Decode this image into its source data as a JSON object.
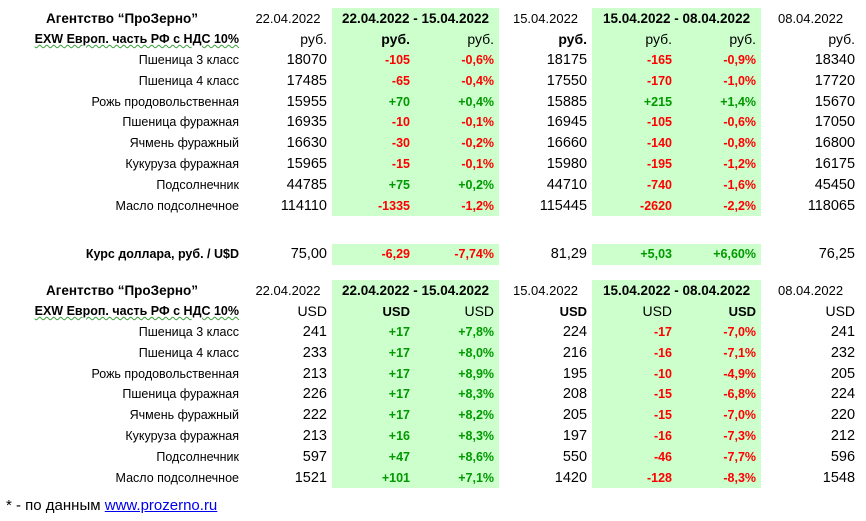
{
  "colors": {
    "highlight": "#ccffcc",
    "negative": "#ff0000",
    "positive": "#009900",
    "link": "#0000ee"
  },
  "rub_table": {
    "agency": "Агентство “ПроЗерно”",
    "date_a": "22.04.2022",
    "range_1": "22.04.2022 - 15.04.2022",
    "date_b": "15.04.2022",
    "range_2": "15.04.2022 - 08.04.2022",
    "date_c": "08.04.2022",
    "basis": "EXW Европ. часть РФ с НДС 10%",
    "units": [
      "руб.",
      "руб.",
      "руб.",
      "руб.",
      "руб.",
      "руб.",
      "руб."
    ],
    "rows": [
      {
        "name": "Пшеница 3 класс",
        "v1": "18070",
        "d1": "-105",
        "p1": "-0,6%",
        "v2": "18175",
        "d2": "-165",
        "p2": "-0,9%",
        "v3": "18340"
      },
      {
        "name": "Пшеница 4 класс",
        "v1": "17485",
        "d1": "-65",
        "p1": "-0,4%",
        "v2": "17550",
        "d2": "-170",
        "p2": "-1,0%",
        "v3": "17720"
      },
      {
        "name": "Рожь продовольственная",
        "v1": "15955",
        "d1": "+70",
        "p1": "+0,4%",
        "v2": "15885",
        "d2": "+215",
        "p2": "+1,4%",
        "v3": "15670"
      },
      {
        "name": "Пшеница фуражная",
        "v1": "16935",
        "d1": "-10",
        "p1": "-0,1%",
        "v2": "16945",
        "d2": "-105",
        "p2": "-0,6%",
        "v3": "17050"
      },
      {
        "name": "Ячмень фуражный",
        "v1": "16630",
        "d1": "-30",
        "p1": "-0,2%",
        "v2": "16660",
        "d2": "-140",
        "p2": "-0,8%",
        "v3": "16800"
      },
      {
        "name": "Кукуруза фуражная",
        "v1": "15965",
        "d1": "-15",
        "p1": "-0,1%",
        "v2": "15980",
        "d2": "-195",
        "p2": "-1,2%",
        "v3": "16175"
      },
      {
        "name": "Подсолнечник",
        "v1": "44785",
        "d1": "+75",
        "p1": "+0,2%",
        "v2": "44710",
        "d2": "-740",
        "p2": "-1,6%",
        "v3": "45450"
      },
      {
        "name": "Масло подсолнечное",
        "v1": "114110",
        "d1": "-1335",
        "p1": "-1,2%",
        "v2": "115445",
        "d2": "-2620",
        "p2": "-2,2%",
        "v3": "118065"
      }
    ]
  },
  "fx_row": {
    "name": "Курс доллара, руб. / U$D",
    "v1": "75,00",
    "d1": "-6,29",
    "p1": "-7,74%",
    "v2": "81,29",
    "d2": "+5,03",
    "p2": "+6,60%",
    "v3": "76,25"
  },
  "usd_table": {
    "agency": "Агентство “ПроЗерно”",
    "date_a": "22.04.2022",
    "range_1": "22.04.2022 - 15.04.2022",
    "date_b": "15.04.2022",
    "range_2": "15.04.2022 - 08.04.2022",
    "date_c": "08.04.2022",
    "basis": "EXW Европ. часть РФ с НДС 10%",
    "units": [
      "USD",
      "USD",
      "USD",
      "USD",
      "USD",
      "USD",
      "USD"
    ],
    "rows": [
      {
        "name": "Пшеница 3 класс",
        "v1": "241",
        "d1": "+17",
        "p1": "+7,8%",
        "v2": "224",
        "d2": "-17",
        "p2": "-7,0%",
        "v3": "241"
      },
      {
        "name": "Пшеница 4 класс",
        "v1": "233",
        "d1": "+17",
        "p1": "+8,0%",
        "v2": "216",
        "d2": "-16",
        "p2": "-7,1%",
        "v3": "232"
      },
      {
        "name": "Рожь продовольственная",
        "v1": "213",
        "d1": "+17",
        "p1": "+8,9%",
        "v2": "195",
        "d2": "-10",
        "p2": "-4,9%",
        "v3": "205"
      },
      {
        "name": "Пшеница фуражная",
        "v1": "226",
        "d1": "+17",
        "p1": "+8,3%",
        "v2": "208",
        "d2": "-15",
        "p2": "-6,8%",
        "v3": "224"
      },
      {
        "name": "Ячмень фуражный",
        "v1": "222",
        "d1": "+17",
        "p1": "+8,2%",
        "v2": "205",
        "d2": "-15",
        "p2": "-7,0%",
        "v3": "220"
      },
      {
        "name": "Кукуруза фуражная",
        "v1": "213",
        "d1": "+16",
        "p1": "+8,3%",
        "v2": "197",
        "d2": "-16",
        "p2": "-7,3%",
        "v3": "212"
      },
      {
        "name": "Подсолнечник",
        "v1": "597",
        "d1": "+47",
        "p1": "+8,6%",
        "v2": "550",
        "d2": "-46",
        "p2": "-7,7%",
        "v3": "596"
      },
      {
        "name": "Масло подсолнечное",
        "v1": "1521",
        "d1": "+101",
        "p1": "+7,1%",
        "v2": "1420",
        "d2": "-128",
        "p2": "-8,3%",
        "v3": "1548"
      }
    ]
  },
  "footnote": {
    "prefix": "* - по данным ",
    "link_text": "www.prozerno.ru"
  }
}
